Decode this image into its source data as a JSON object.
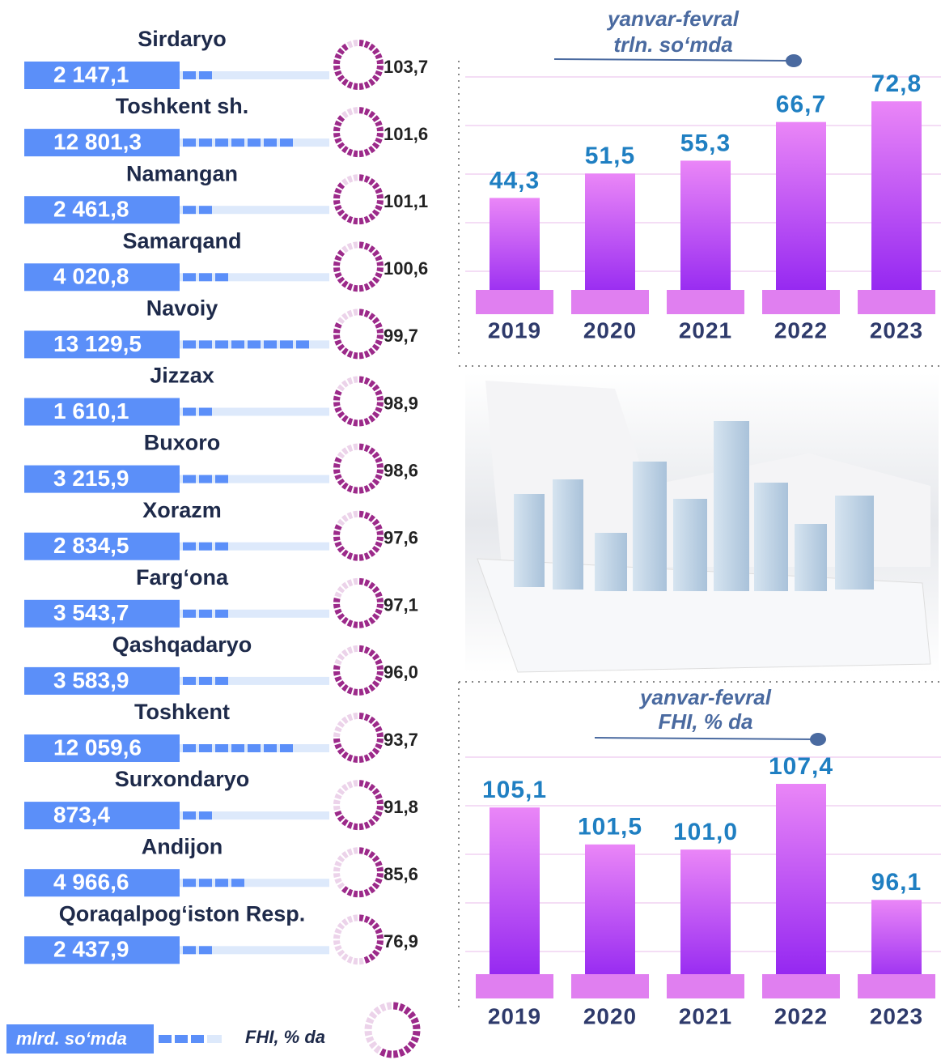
{
  "chart_data": [
    {
      "type": "regions",
      "categories": [
        "Sirdaryo",
        "Toshkent sh.",
        "Namangan",
        "Samarqand",
        "Navoiy",
        "Jizzax",
        "Buxoro",
        "Xorazm",
        "Farg‘ona",
        "Qashqadaryo",
        "Toshkent",
        "Surxondaryo",
        "Andijon",
        "Qoraqalpog‘iston Resp."
      ],
      "series": [
        {
          "name": "mlrd. so‘mda",
          "color": "#5b8ff9",
          "values": [
            2147.1,
            12801.3,
            2461.8,
            4020.8,
            13129.5,
            1610.1,
            3215.9,
            2834.5,
            3543.7,
            3583.9,
            12059.6,
            873.4,
            4966.6,
            2437.9
          ],
          "value_labels": [
            "2 147,1",
            "12 801,3",
            "2 461,8",
            "4 020,8",
            "13 129,5",
            "1 610,1",
            "3 215,9",
            "2 834,5",
            "3 543,7",
            "3 583,9",
            "12 059,6",
            "873,4",
            "4 966,6",
            "2 437,9"
          ]
        },
        {
          "name": "FHI, % da",
          "color": "#9c2a8a",
          "values": [
            103.7,
            101.6,
            101.1,
            100.6,
            99.7,
            98.9,
            98.6,
            97.6,
            97.1,
            96.0,
            93.7,
            91.8,
            85.6,
            76.9
          ],
          "value_labels": [
            "103,7",
            "101,6",
            "101,1",
            "100,6",
            "99,7",
            "98,9",
            "98,6",
            "97,6",
            "97,1",
            "96,0",
            "93,7",
            "91,8",
            "85,6",
            "76,9"
          ]
        }
      ],
      "xlim": [
        -3000,
        16000
      ],
      "ringlim": [
        50,
        110
      ]
    },
    {
      "type": "bar",
      "subtitle": [
        "yanvar-fevral",
        "trln. so‘mda"
      ],
      "categories": [
        "2019",
        "2020",
        "2021",
        "2022",
        "2023"
      ],
      "values": [
        44.3,
        51.5,
        55.3,
        66.7,
        72.8
      ],
      "value_labels": [
        "44,3",
        "51,5",
        "55,3",
        "66,7",
        "72,8"
      ],
      "color": "#8a1cf0",
      "ylim": [
        10,
        80
      ],
      "grid": true
    },
    {
      "type": "bar",
      "subtitle": [
        "yanvar-fevral",
        "FHI, % da"
      ],
      "categories": [
        "2019",
        "2020",
        "2021",
        "2022",
        "2023"
      ],
      "values": [
        105.1,
        101.5,
        101.0,
        107.4,
        96.1
      ],
      "value_labels": [
        "105,1",
        "101,5",
        "101,0",
        "107,4",
        "96,1"
      ],
      "color": "#8a1cf0",
      "ylim": [
        86.5,
        110
      ],
      "grid": true
    }
  ]
}
